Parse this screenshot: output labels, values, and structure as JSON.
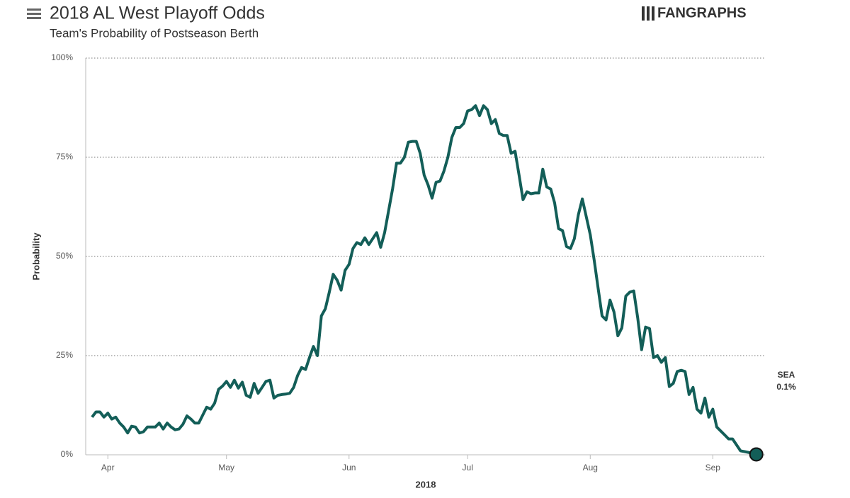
{
  "chart_data": {
    "type": "line",
    "title": "2018 AL West Playoff Odds",
    "subtitle": "Team's Probability of Postseason Berth",
    "brand": "FANGRAPHS",
    "y_label": "Probability",
    "x_label": "2018",
    "xlim": [
      -1.6,
      170.2
    ],
    "xticks": [
      {
        "value": 4,
        "label": "Apr"
      },
      {
        "value": 34,
        "label": "May"
      },
      {
        "value": 65,
        "label": "Jun"
      },
      {
        "value": 95,
        "label": "Jul"
      },
      {
        "value": 126,
        "label": "Aug"
      },
      {
        "value": 157,
        "label": "Sep"
      }
    ],
    "ylim": [
      0,
      100
    ],
    "yticks": [
      {
        "value": 0,
        "label": "0%"
      },
      {
        "value": 25,
        "label": "25%"
      },
      {
        "value": 50,
        "label": "50%"
      },
      {
        "value": 75,
        "label": "75%"
      },
      {
        "value": 100,
        "label": "100%"
      }
    ],
    "grid": true,
    "series": [
      {
        "name": "SEA",
        "color": "#135e58",
        "values": [
          9.5,
          10.8,
          10.8,
          9.5,
          10.5,
          9,
          9.5,
          8,
          7,
          5.5,
          7.2,
          7,
          5.5,
          5.8,
          7,
          7,
          7,
          8,
          6.5,
          8,
          7,
          6.3,
          6.5,
          7.7,
          9.8,
          9,
          8,
          8,
          10,
          12,
          11.5,
          13,
          16.5,
          17.3,
          18.5,
          17,
          18.8,
          16.8,
          18.3,
          15,
          14.5,
          18,
          15.5,
          17,
          18.5,
          18.8,
          14.3,
          15,
          15.2,
          15.3,
          15.5,
          17,
          20,
          22,
          21.5,
          24.5,
          27.3,
          25,
          35,
          36.8,
          41,
          45.5,
          44,
          41.5,
          46.5,
          48,
          52,
          53.5,
          53,
          54.7,
          53,
          54.5,
          56,
          52.3,
          56,
          61.5,
          67,
          73.5,
          73.5,
          75,
          78.8,
          79,
          79,
          76,
          70.5,
          68,
          64.7,
          68.7,
          69,
          71.5,
          75,
          80,
          82.5,
          82.5,
          83.5,
          86.7,
          87,
          88,
          85.5,
          88,
          87,
          83.5,
          84.5,
          81,
          80.5,
          80.5,
          76,
          76.5,
          70.5,
          64.3,
          66.3,
          65.8,
          66,
          66,
          72,
          67.5,
          67,
          63.5,
          57,
          56.5,
          52.5,
          52,
          54.5,
          60.5,
          64.5,
          60,
          55.5,
          49,
          42,
          35,
          34,
          39,
          36,
          30,
          32,
          40,
          41,
          41.3,
          34.5,
          26.5,
          32.2,
          31.8,
          24.5,
          25,
          23.3,
          24.5,
          17.2,
          18,
          21,
          21.3,
          21,
          15.2,
          17,
          11.5,
          10.5,
          14.3,
          9.5,
          11.5,
          7,
          6,
          5,
          4,
          4,
          2.5,
          1,
          0.8,
          0.6,
          0.4,
          0.1
        ],
        "end_label": "0.1%"
      }
    ]
  }
}
